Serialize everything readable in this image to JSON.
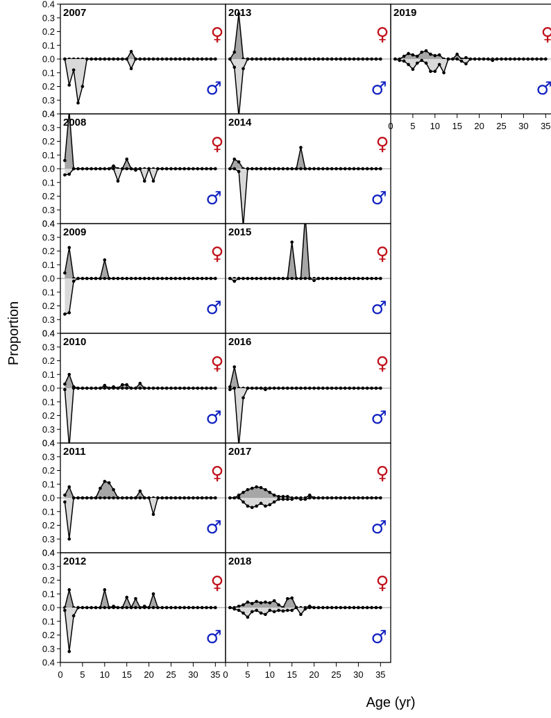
{
  "chart_data": {
    "type": "area",
    "xlabel": "Age (yr)",
    "ylabel": "Proportion",
    "xlim": [
      1,
      35
    ],
    "ylim": [
      -0.4,
      0.4
    ],
    "x_ticks": [
      0,
      5,
      10,
      15,
      20,
      25,
      30,
      35
    ],
    "y_ticks": [
      0.4,
      0.3,
      0.2,
      0.1,
      0.0,
      0.1,
      0.2,
      0.3,
      0.4
    ],
    "y_tick_labels": [
      "0.4",
      "0.3",
      "0.2",
      "0.1",
      "0.0",
      "0.1",
      "0.2",
      "0.3",
      "0.4"
    ],
    "female_symbol": "♀",
    "male_symbol": "♂",
    "colors": {
      "female_fill": "#a6a6a6",
      "male_fill": "#d9d9d9",
      "female_symbol": "#c0101a",
      "male_symbol": "#1020c0",
      "zero_line": "#aaaaaa"
    },
    "grid": false,
    "legend": "none",
    "panels": [
      {
        "year": "2007",
        "female": {
          "16": 0.055
        },
        "male": {
          "2": 0.19,
          "3": 0.08,
          "4": 0.32,
          "5": 0.2,
          "16": 0.07
        }
      },
      {
        "year": "2008",
        "female": {
          "1": 0.06,
          "2": 0.42,
          "12": 0.02,
          "15": 0.07
        },
        "male": {
          "1": 0.045,
          "2": 0.04,
          "13": 0.09,
          "17": 0.01,
          "19": 0.09,
          "21": 0.09
        }
      },
      {
        "year": "2009",
        "female": {
          "1": 0.04,
          "2": 0.225,
          "10": 0.135
        },
        "male": {
          "1": 0.26,
          "2": 0.25,
          "3": 0.02
        }
      },
      {
        "year": "2010",
        "female": {
          "1": 0.03,
          "2": 0.1,
          "3": 0.01,
          "10": 0.02,
          "12": 0.01,
          "14": 0.025,
          "15": 0.025,
          "18": 0.035
        },
        "male": {
          "1": 0.01,
          "2": 0.43
        }
      },
      {
        "year": "2011",
        "female": {
          "1": 0.02,
          "2": 0.08,
          "9": 0.07,
          "10": 0.12,
          "11": 0.11,
          "12": 0.06,
          "18": 0.05
        },
        "male": {
          "1": 0.03,
          "2": 0.3,
          "21": 0.12
        }
      },
      {
        "year": "2012",
        "female": {
          "2": 0.13,
          "10": 0.13,
          "12": 0.01,
          "15": 0.075,
          "17": 0.065,
          "19": 0.01,
          "21": 0.1
        },
        "male": {
          "1": 0.02,
          "2": 0.32,
          "3": 0.06
        }
      },
      {
        "year": "2013",
        "female": {
          "2": 0.05,
          "3": 0.33
        },
        "male": {
          "2": 0.06,
          "3": 0.42,
          "4": 0.07
        }
      },
      {
        "year": "2014",
        "female": {
          "2": 0.07,
          "3": 0.05,
          "17": 0.155
        },
        "male": {
          "3": 0.02,
          "4": 0.42
        }
      },
      {
        "year": "2015",
        "female": {
          "15": 0.265,
          "18": 0.46
        },
        "male": {
          "2": 0.02,
          "20": 0.015
        }
      },
      {
        "year": "2016",
        "female": {
          "1": 0.01,
          "2": 0.155
        },
        "male": {
          "1": 0.01,
          "3": 0.42,
          "4": 0.07,
          "9": 0.01
        }
      },
      {
        "year": "2017",
        "female": {
          "3": 0.02,
          "4": 0.04,
          "5": 0.06,
          "6": 0.07,
          "7": 0.08,
          "8": 0.075,
          "9": 0.06,
          "10": 0.04,
          "11": 0.02,
          "12": 0.01,
          "13": 0.01,
          "14": 0.01,
          "19": 0.02
        },
        "male": {
          "4": 0.03,
          "5": 0.06,
          "6": 0.07,
          "7": 0.06,
          "8": 0.04,
          "9": 0.06,
          "10": 0.05,
          "11": 0.03,
          "12": 0.01,
          "13": 0.01,
          "14": 0.01,
          "15": 0.01,
          "17": 0.01,
          "18": 0.01
        }
      },
      {
        "year": "2018",
        "female": {
          "3": 0.01,
          "4": 0.02,
          "5": 0.04,
          "6": 0.03,
          "7": 0.045,
          "8": 0.035,
          "9": 0.04,
          "10": 0.035,
          "11": 0.05,
          "12": 0.02,
          "14": 0.065,
          "15": 0.07,
          "19": 0.01
        },
        "male": {
          "2": 0.01,
          "3": 0.02,
          "4": 0.04,
          "5": 0.07,
          "6": 0.03,
          "7": 0.02,
          "8": 0.04,
          "9": 0.05,
          "10": 0.02,
          "11": 0.03,
          "12": 0.02,
          "13": 0.025,
          "14": 0.02,
          "15": 0.02,
          "17": 0.05,
          "18": 0.01
        }
      },
      {
        "year": "2019",
        "female": {
          "3": 0.02,
          "4": 0.04,
          "5": 0.03,
          "6": 0.02,
          "7": 0.05,
          "8": 0.06,
          "9": 0.035,
          "10": 0.025,
          "11": 0.03,
          "15": 0.035,
          "17": 0.01
        },
        "male": {
          "2": 0.01,
          "3": 0.015,
          "4": 0.04,
          "5": 0.075,
          "6": 0.03,
          "7": 0.01,
          "8": 0.03,
          "9": 0.09,
          "10": 0.09,
          "11": 0.04,
          "12": 0.1,
          "16": 0.015,
          "17": 0.035,
          "23": 0.01
        }
      }
    ]
  }
}
